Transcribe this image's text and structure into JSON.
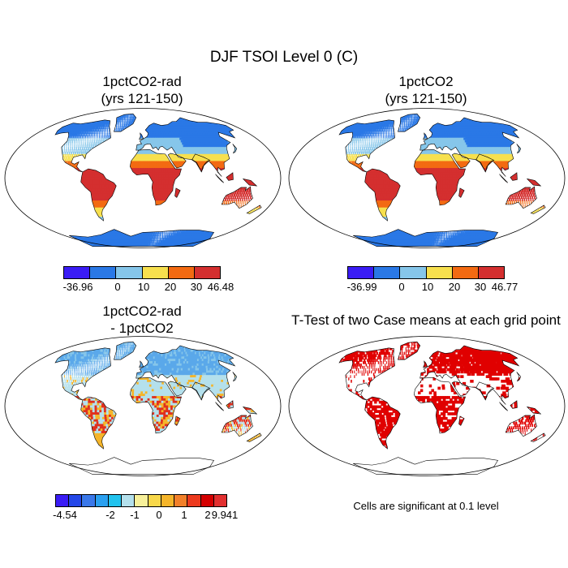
{
  "title": "DJF TSOI Level 0 (C)",
  "panels": {
    "p1": {
      "title_line1": "1pctCO2-rad",
      "title_line2": "(yrs 121-150)"
    },
    "p2": {
      "title_line1": "1pctCO2",
      "title_line2": "(yrs 121-150)"
    },
    "p3": {
      "title_line1": "1pctCO2-rad",
      "title_line2": "- 1pctCO2"
    },
    "p4": {
      "title": "T-Test of two Case means at each grid point",
      "note": "Cells are significant at 0.1 level"
    }
  },
  "colorbars": {
    "cb1": {
      "colors": [
        "#3a1cf5",
        "#2a78e6",
        "#86c6ea",
        "#f7e04e",
        "#f36a12",
        "#d42f2f"
      ],
      "labels": [
        "-36.96",
        "0",
        "10",
        "20",
        "30",
        "46.48"
      ]
    },
    "cb2": {
      "colors": [
        "#3a1cf5",
        "#2a78e6",
        "#86c6ea",
        "#f7e04e",
        "#f36a12",
        "#d42f2f"
      ],
      "labels": [
        "-36.99",
        "0",
        "10",
        "20",
        "30",
        "46.77"
      ]
    },
    "cb3": {
      "colors": [
        "#3a1cf5",
        "#2447e8",
        "#3a78ea",
        "#2aa0f0",
        "#22c3ee",
        "#b4e0ec",
        "#f7f09a",
        "#f8d84a",
        "#f5b52a",
        "#f2802a",
        "#ec3a1e",
        "#d40000",
        "#e23030"
      ],
      "labels": [
        "-4.54",
        "-2",
        "-1",
        "0",
        "1",
        "2",
        "9.941"
      ]
    }
  },
  "map_colors": {
    "ocean": "#ffffff",
    "cold": "#2a78e6",
    "cool": "#86c6ea",
    "mild": "#f7e04e",
    "warm": "#f36a12",
    "hot": "#d42f2f",
    "diff_base": "#b4e0ec",
    "diff_pos": "#f5b52a",
    "diff_hot": "#e0301e",
    "sig": "#e00000"
  }
}
